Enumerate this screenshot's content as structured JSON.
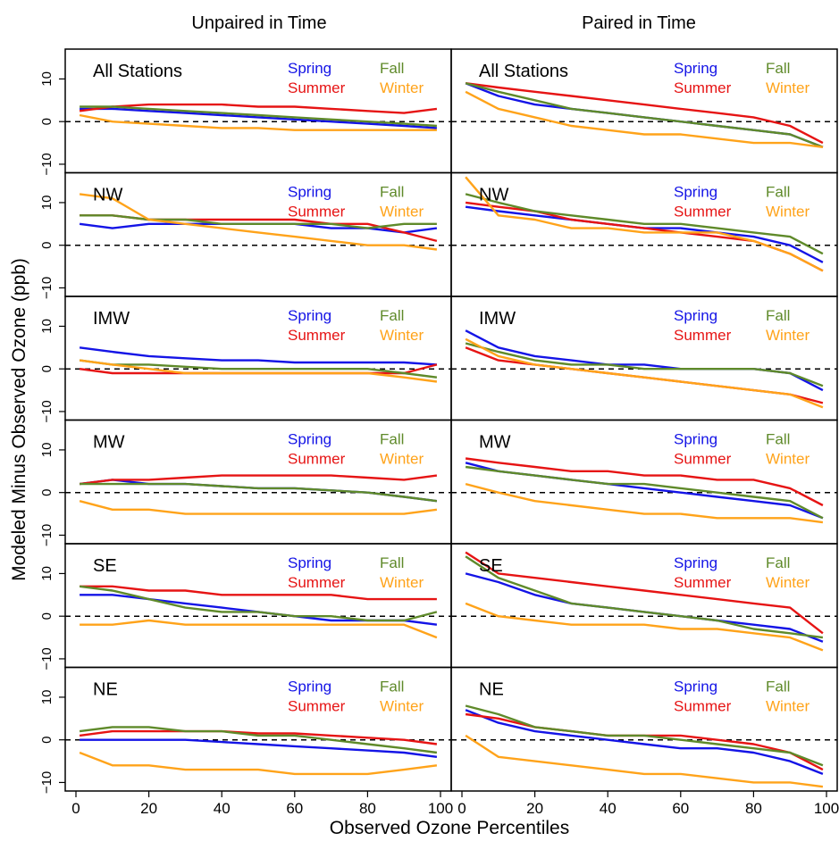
{
  "figure": {
    "col_titles": [
      "Unpaired in Time",
      "Paired in Time"
    ],
    "ylabel": "Modeled Minus Observed Ozone (ppb)",
    "xlabel": "Observed Ozone Percentiles",
    "x_ticks": [
      0,
      20,
      40,
      60,
      80,
      100
    ],
    "y_ticks": [
      10,
      0,
      -10
    ],
    "xlim": [
      0,
      100
    ],
    "ylim": [
      -12,
      17
    ],
    "legend": [
      "Spring",
      "Summer",
      "Fall",
      "Winter"
    ]
  },
  "colors": {
    "Spring": "#1414e6",
    "Summer": "#e61414",
    "Fall": "#5f8a2a",
    "Winter": "#ffa31a"
  },
  "chart_data": {
    "type": "line",
    "rows": [
      "All Stations",
      "NW",
      "IMW",
      "MW",
      "SE",
      "NE"
    ],
    "columns": [
      "Unpaired in Time",
      "Paired in Time"
    ],
    "series_order": [
      "Spring",
      "Summer",
      "Fall",
      "Winter"
    ],
    "panels": [
      {
        "row": "All Stations",
        "column": "Unpaired in Time",
        "x": [
          1,
          10,
          20,
          30,
          40,
          50,
          60,
          70,
          80,
          90,
          99
        ],
        "series": [
          {
            "name": "Spring",
            "values": [
              3,
              3,
              2.5,
              2,
              1.5,
              1,
              0.5,
              0,
              -0.5,
              -1,
              -1.5
            ]
          },
          {
            "name": "Summer",
            "values": [
              2.5,
              3.5,
              4,
              4,
              4,
              3.5,
              3.5,
              3,
              2.5,
              2,
              3
            ]
          },
          {
            "name": "Fall",
            "values": [
              3.5,
              3.5,
              3,
              2.5,
              2,
              1.5,
              1,
              0.5,
              0,
              -0.5,
              -1
            ]
          },
          {
            "name": "Winter",
            "values": [
              1.5,
              0,
              -0.5,
              -1,
              -1.5,
              -1.5,
              -2,
              -2,
              -2,
              -2,
              -2
            ]
          }
        ]
      },
      {
        "row": "All Stations",
        "column": "Paired in Time",
        "x": [
          1,
          10,
          20,
          30,
          40,
          50,
          60,
          70,
          80,
          90,
          99
        ],
        "series": [
          {
            "name": "Spring",
            "values": [
              9,
              6,
              4,
              3,
              2,
              1,
              0,
              -1,
              -2,
              -3,
              -6
            ]
          },
          {
            "name": "Summer",
            "values": [
              9,
              8,
              7,
              6,
              5,
              4,
              3,
              2,
              1,
              -1,
              -5
            ]
          },
          {
            "name": "Fall",
            "values": [
              9,
              7,
              5,
              3,
              2,
              1,
              0,
              -1,
              -2,
              -3,
              -6
            ]
          },
          {
            "name": "Winter",
            "values": [
              7,
              3,
              1,
              -1,
              -2,
              -3,
              -3,
              -4,
              -5,
              -5,
              -6
            ]
          }
        ]
      },
      {
        "row": "NW",
        "column": "Unpaired in Time",
        "x": [
          1,
          10,
          20,
          30,
          40,
          50,
          60,
          70,
          80,
          90,
          99
        ],
        "series": [
          {
            "name": "Spring",
            "values": [
              5,
              4,
              5,
              5,
              5,
              5,
              5,
              4,
              4,
              3,
              4
            ]
          },
          {
            "name": "Summer",
            "values": [
              7,
              7,
              6,
              6,
              6,
              6,
              6,
              5,
              5,
              3,
              1
            ]
          },
          {
            "name": "Fall",
            "values": [
              7,
              7,
              6,
              6,
              5,
              5,
              5,
              5,
              4,
              5,
              5
            ]
          },
          {
            "name": "Winter",
            "values": [
              12,
              11,
              6,
              5,
              4,
              3,
              2,
              1,
              0,
              0,
              -1
            ]
          }
        ]
      },
      {
        "row": "NW",
        "column": "Paired in Time",
        "x": [
          1,
          10,
          20,
          30,
          40,
          50,
          60,
          70,
          80,
          90,
          99
        ],
        "series": [
          {
            "name": "Spring",
            "values": [
              9,
              8,
              7,
              6,
              5,
              4,
              4,
              3,
              2,
              0,
              -4
            ]
          },
          {
            "name": "Summer",
            "values": [
              10,
              9,
              8,
              6,
              5,
              4,
              3,
              2,
              1,
              -2,
              -6
            ]
          },
          {
            "name": "Fall",
            "values": [
              12,
              10,
              8,
              7,
              6,
              5,
              5,
              4,
              3,
              2,
              -2
            ]
          },
          {
            "name": "Winter",
            "values": [
              16,
              7,
              6,
              4,
              4,
              3,
              3,
              3,
              1,
              -2,
              -6
            ]
          }
        ]
      },
      {
        "row": "IMW",
        "column": "Unpaired in Time",
        "x": [
          1,
          10,
          20,
          30,
          40,
          50,
          60,
          70,
          80,
          90,
          99
        ],
        "series": [
          {
            "name": "Spring",
            "values": [
              5,
              4,
              3,
              2.5,
              2,
              2,
              1.5,
              1.5,
              1.5,
              1.5,
              1
            ]
          },
          {
            "name": "Summer",
            "values": [
              0,
              -1,
              -1,
              -1,
              -1,
              -1,
              -1,
              -1,
              -1,
              -1,
              1
            ]
          },
          {
            "name": "Fall",
            "values": [
              2,
              1,
              1,
              0.5,
              0,
              0,
              0,
              0,
              0,
              -1,
              -2
            ]
          },
          {
            "name": "Winter",
            "values": [
              2,
              1,
              0,
              -1,
              -1,
              -1,
              -1,
              -1,
              -1,
              -2,
              -3
            ]
          }
        ]
      },
      {
        "row": "IMW",
        "column": "Paired in Time",
        "x": [
          1,
          10,
          20,
          30,
          40,
          50,
          60,
          70,
          80,
          90,
          99
        ],
        "series": [
          {
            "name": "Spring",
            "values": [
              9,
              5,
              3,
              2,
              1,
              1,
              0,
              0,
              0,
              -1,
              -5
            ]
          },
          {
            "name": "Summer",
            "values": [
              5,
              2,
              1,
              0,
              -1,
              -2,
              -3,
              -4,
              -5,
              -6,
              -8
            ]
          },
          {
            "name": "Fall",
            "values": [
              6,
              4,
              2,
              1,
              1,
              0,
              0,
              0,
              0,
              -1,
              -4
            ]
          },
          {
            "name": "Winter",
            "values": [
              7,
              3,
              1,
              0,
              -1,
              -2,
              -3,
              -4,
              -5,
              -6,
              -9
            ]
          }
        ]
      },
      {
        "row": "MW",
        "column": "Unpaired in Time",
        "x": [
          1,
          10,
          20,
          30,
          40,
          50,
          60,
          70,
          80,
          90,
          99
        ],
        "series": [
          {
            "name": "Spring",
            "values": [
              2,
              3,
              2,
              2,
              1.5,
              1,
              1,
              0.5,
              0,
              -1,
              -2
            ]
          },
          {
            "name": "Summer",
            "values": [
              2,
              3,
              3,
              3.5,
              4,
              4,
              4,
              4,
              3.5,
              3,
              4
            ]
          },
          {
            "name": "Fall",
            "values": [
              2,
              2,
              2,
              2,
              1.5,
              1,
              1,
              0.5,
              0,
              -1,
              -2
            ]
          },
          {
            "name": "Winter",
            "values": [
              -2,
              -4,
              -4,
              -5,
              -5,
              -5,
              -5,
              -5,
              -5,
              -5,
              -4
            ]
          }
        ]
      },
      {
        "row": "MW",
        "column": "Paired in Time",
        "x": [
          1,
          10,
          20,
          30,
          40,
          50,
          60,
          70,
          80,
          90,
          99
        ],
        "series": [
          {
            "name": "Spring",
            "values": [
              7,
              5,
              4,
              3,
              2,
              1,
              0,
              -1,
              -2,
              -3,
              -6
            ]
          },
          {
            "name": "Summer",
            "values": [
              8,
              7,
              6,
              5,
              5,
              4,
              4,
              3,
              3,
              1,
              -3
            ]
          },
          {
            "name": "Fall",
            "values": [
              6,
              5,
              4,
              3,
              2,
              2,
              1,
              0,
              -1,
              -2,
              -6
            ]
          },
          {
            "name": "Winter",
            "values": [
              2,
              0,
              -2,
              -3,
              -4,
              -5,
              -5,
              -6,
              -6,
              -6,
              -7
            ]
          }
        ]
      },
      {
        "row": "SE",
        "column": "Unpaired in Time",
        "x": [
          1,
          10,
          20,
          30,
          40,
          50,
          60,
          70,
          80,
          90,
          99
        ],
        "series": [
          {
            "name": "Spring",
            "values": [
              5,
              5,
              4,
              3,
              2,
              1,
              0,
              -1,
              -1,
              -1,
              -2
            ]
          },
          {
            "name": "Summer",
            "values": [
              7,
              7,
              6,
              6,
              5,
              5,
              5,
              5,
              4,
              4,
              4
            ]
          },
          {
            "name": "Fall",
            "values": [
              7,
              6,
              4,
              2,
              1,
              1,
              0,
              0,
              -1,
              -1,
              1
            ]
          },
          {
            "name": "Winter",
            "values": [
              -2,
              -2,
              -1,
              -2,
              -2,
              -2,
              -2,
              -2,
              -2,
              -2,
              -5
            ]
          }
        ]
      },
      {
        "row": "SE",
        "column": "Paired in Time",
        "x": [
          1,
          10,
          20,
          30,
          40,
          50,
          60,
          70,
          80,
          90,
          99
        ],
        "series": [
          {
            "name": "Spring",
            "values": [
              10,
              8,
              5,
              3,
              2,
              1,
              0,
              -1,
              -2,
              -3,
              -6
            ]
          },
          {
            "name": "Summer",
            "values": [
              15,
              10,
              9,
              8,
              7,
              6,
              5,
              4,
              3,
              2,
              -4
            ]
          },
          {
            "name": "Fall",
            "values": [
              14,
              9,
              6,
              3,
              2,
              1,
              0,
              -1,
              -3,
              -4,
              -5
            ]
          },
          {
            "name": "Winter",
            "values": [
              3,
              0,
              -1,
              -2,
              -2,
              -2,
              -3,
              -3,
              -4,
              -5,
              -8
            ]
          }
        ]
      },
      {
        "row": "NE",
        "column": "Unpaired in Time",
        "x": [
          1,
          10,
          20,
          30,
          40,
          50,
          60,
          70,
          80,
          90,
          99
        ],
        "series": [
          {
            "name": "Spring",
            "values": [
              0,
              0,
              0,
              0,
              -0.5,
              -1,
              -1.5,
              -2,
              -2.5,
              -3,
              -4
            ]
          },
          {
            "name": "Summer",
            "values": [
              1,
              2,
              2,
              2,
              2,
              1.5,
              1.5,
              1,
              0.5,
              0,
              -1
            ]
          },
          {
            "name": "Fall",
            "values": [
              2,
              3,
              3,
              2,
              2,
              1,
              1,
              0,
              -1,
              -2,
              -3
            ]
          },
          {
            "name": "Winter",
            "values": [
              -3,
              -6,
              -6,
              -7,
              -7,
              -7,
              -8,
              -8,
              -8,
              -7,
              -6
            ]
          }
        ]
      },
      {
        "row": "NE",
        "column": "Paired in Time",
        "x": [
          1,
          10,
          20,
          30,
          40,
          50,
          60,
          70,
          80,
          90,
          99
        ],
        "series": [
          {
            "name": "Spring",
            "values": [
              7,
              4,
              2,
              1,
              0,
              -1,
              -2,
              -2,
              -3,
              -5,
              -8
            ]
          },
          {
            "name": "Summer",
            "values": [
              6,
              5,
              3,
              2,
              1,
              1,
              1,
              0,
              -1,
              -3,
              -7
            ]
          },
          {
            "name": "Fall",
            "values": [
              8,
              6,
              3,
              2,
              1,
              1,
              0,
              -1,
              -2,
              -3,
              -6
            ]
          },
          {
            "name": "Winter",
            "values": [
              1,
              -4,
              -5,
              -6,
              -7,
              -8,
              -8,
              -9,
              -10,
              -10,
              -11
            ]
          }
        ]
      }
    ]
  }
}
